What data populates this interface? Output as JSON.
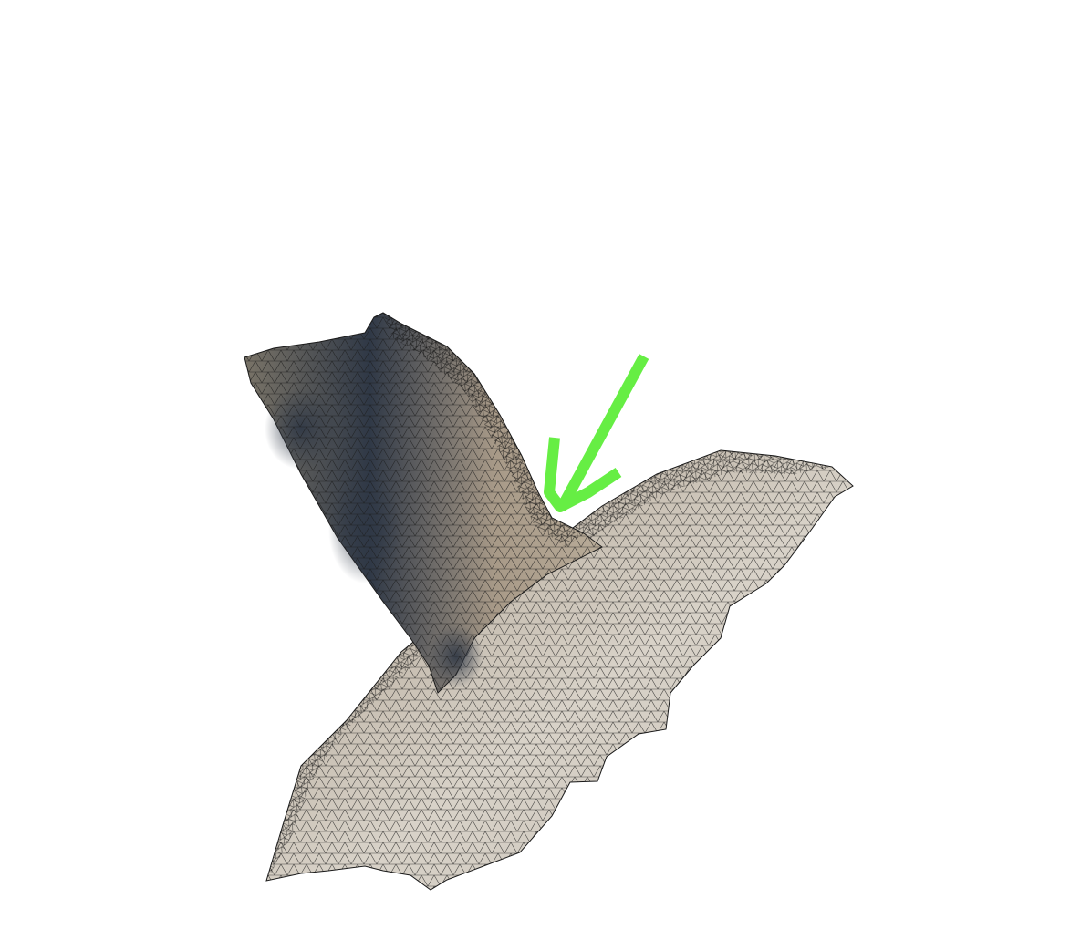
{
  "scene": {
    "background_color": "#ffffff",
    "surface_color_light": "#d8d2c8",
    "surface_color_mid": "#a89a88",
    "surface_color_dark": "#2f3846",
    "wireframe_color": "#1a1a1a",
    "annotation_color": "#66ee44",
    "annotation_icon": "arrow-down-left-icon",
    "subject": "triangulated-surface-mesh-junction"
  }
}
